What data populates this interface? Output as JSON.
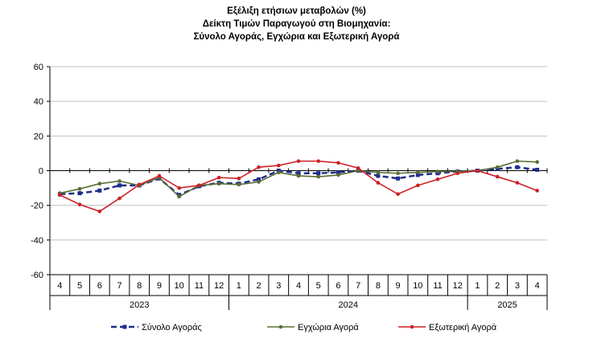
{
  "chart_data": {
    "type": "line",
    "title_lines": [
      "Εξέλιξη ετήσιων μεταβολών (%)",
      "Δείκτη Τιμών Παραγωγού στη Βιομηχανία:",
      "Σύνολο Αγοράς, Εγχώρια και Εξωτερική Αγορά"
    ],
    "categories": [
      "4",
      "5",
      "6",
      "7",
      "8",
      "9",
      "10",
      "11",
      "12",
      "1",
      "2",
      "3",
      "4",
      "5",
      "6",
      "7",
      "8",
      "9",
      "10",
      "11",
      "12",
      "1",
      "2",
      "3",
      "4"
    ],
    "year_groups": [
      {
        "label": "2023",
        "count": 9
      },
      {
        "label": "2024",
        "count": 12
      },
      {
        "label": "2025",
        "count": 4
      }
    ],
    "ylim": [
      -60,
      60
    ],
    "yticks": [
      60,
      40,
      20,
      0,
      -20,
      -40,
      -60
    ],
    "legend_position": "bottom",
    "series": [
      {
        "name": "Σύνολο Αγοράς",
        "color": "#1f2d8a",
        "style": "dashed",
        "values": [
          -13.5,
          -13,
          -11.5,
          -8.5,
          -8.5,
          -4.5,
          -14,
          -9,
          -7,
          -7.5,
          -5,
          0,
          -1.5,
          -1.5,
          -1,
          0,
          -3,
          -4.5,
          -2.5,
          -1.5,
          -0.5,
          0,
          1,
          2,
          0.5
        ]
      },
      {
        "name": "Εγχώρια Αγορά",
        "color": "#5a6e35",
        "style": "solid",
        "values": [
          -13,
          -10.5,
          -7.5,
          -6,
          -8.5,
          -4,
          -15,
          -8.5,
          -7.5,
          -8,
          -6.5,
          -1,
          -3,
          -3.5,
          -2.5,
          0,
          -1,
          -1.5,
          -1,
          -0.5,
          -0.5,
          0,
          2,
          5.5,
          5
        ]
      },
      {
        "name": "Εξωτερική Αγορά",
        "color": "#cc2127",
        "style": "solid",
        "values": [
          -14,
          -19.5,
          -23.5,
          -16,
          -8,
          -3,
          -10,
          -8.5,
          -4,
          -4.5,
          2,
          3,
          5.5,
          5.5,
          4.5,
          1.5,
          -7,
          -13.5,
          -8.5,
          -5,
          -1.5,
          0,
          -3.5,
          -7,
          -11.5
        ]
      }
    ]
  }
}
